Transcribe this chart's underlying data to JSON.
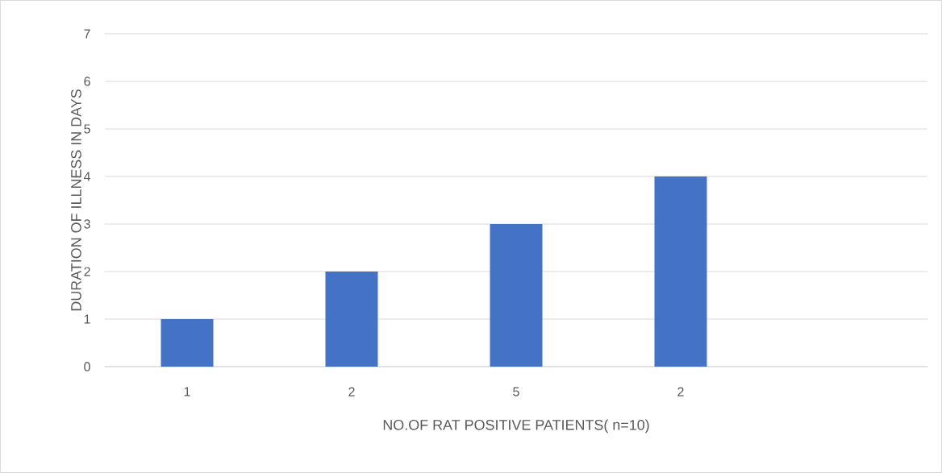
{
  "chart_data": {
    "type": "bar",
    "categories": [
      "1",
      "2",
      "5",
      "2",
      null
    ],
    "values": [
      1,
      2,
      3,
      4,
      null
    ],
    "color": "#4472c4",
    "xlabel": "NO.OF RAT POSITIVE PATIENTS( n=10)",
    "ylabel": "DURATION OF ILLNESS IN DAYS",
    "ylim": [
      0,
      7
    ],
    "yticks": [
      0,
      1,
      2,
      3,
      4,
      5,
      6,
      7
    ],
    "grid": "y"
  }
}
